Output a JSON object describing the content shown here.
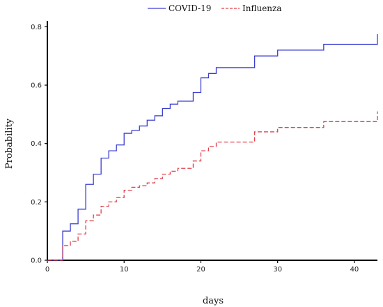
{
  "chart_data": {
    "type": "line",
    "xlabel": "days",
    "ylabel": "Probability",
    "xlim": [
      0,
      43
    ],
    "ylim": [
      0,
      0.82
    ],
    "xticks": [
      0,
      10,
      20,
      30,
      40
    ],
    "yticks": [
      0.0,
      0.2,
      0.4,
      0.6,
      0.8
    ],
    "xtick_labels": [
      "0",
      "10",
      "20",
      "30",
      "40"
    ],
    "ytick_labels": [
      "0.0",
      "0.2",
      "0.4",
      "0.6",
      "0.8"
    ],
    "legend_position": "top-center",
    "step": true,
    "series": [
      {
        "name": "COVID-19",
        "color": "#3a3fd0",
        "dash": "solid",
        "points": [
          [
            0,
            0.0
          ],
          [
            2,
            0.1
          ],
          [
            3,
            0.125
          ],
          [
            4,
            0.175
          ],
          [
            5,
            0.26
          ],
          [
            6,
            0.295
          ],
          [
            7,
            0.35
          ],
          [
            8,
            0.375
          ],
          [
            9,
            0.395
          ],
          [
            10,
            0.435
          ],
          [
            11,
            0.445
          ],
          [
            12,
            0.46
          ],
          [
            13,
            0.48
          ],
          [
            14,
            0.495
          ],
          [
            15,
            0.52
          ],
          [
            16,
            0.535
          ],
          [
            17,
            0.545
          ],
          [
            19,
            0.575
          ],
          [
            20,
            0.625
          ],
          [
            21,
            0.64
          ],
          [
            22,
            0.66
          ],
          [
            27,
            0.7
          ],
          [
            30,
            0.72
          ],
          [
            36,
            0.74
          ],
          [
            43,
            0.775
          ]
        ]
      },
      {
        "name": "Influenza",
        "color": "#e0404a",
        "dash": "dashed",
        "points": [
          [
            0,
            0.0
          ],
          [
            2,
            0.05
          ],
          [
            3,
            0.065
          ],
          [
            4,
            0.09
          ],
          [
            5,
            0.135
          ],
          [
            6,
            0.155
          ],
          [
            7,
            0.185
          ],
          [
            8,
            0.2
          ],
          [
            9,
            0.215
          ],
          [
            10,
            0.24
          ],
          [
            11,
            0.25
          ],
          [
            12,
            0.255
          ],
          [
            13,
            0.265
          ],
          [
            14,
            0.28
          ],
          [
            15,
            0.295
          ],
          [
            16,
            0.305
          ],
          [
            17,
            0.315
          ],
          [
            19,
            0.34
          ],
          [
            20,
            0.375
          ],
          [
            21,
            0.39
          ],
          [
            22,
            0.405
          ],
          [
            27,
            0.44
          ],
          [
            30,
            0.455
          ],
          [
            36,
            0.475
          ],
          [
            43,
            0.51
          ]
        ]
      }
    ]
  }
}
